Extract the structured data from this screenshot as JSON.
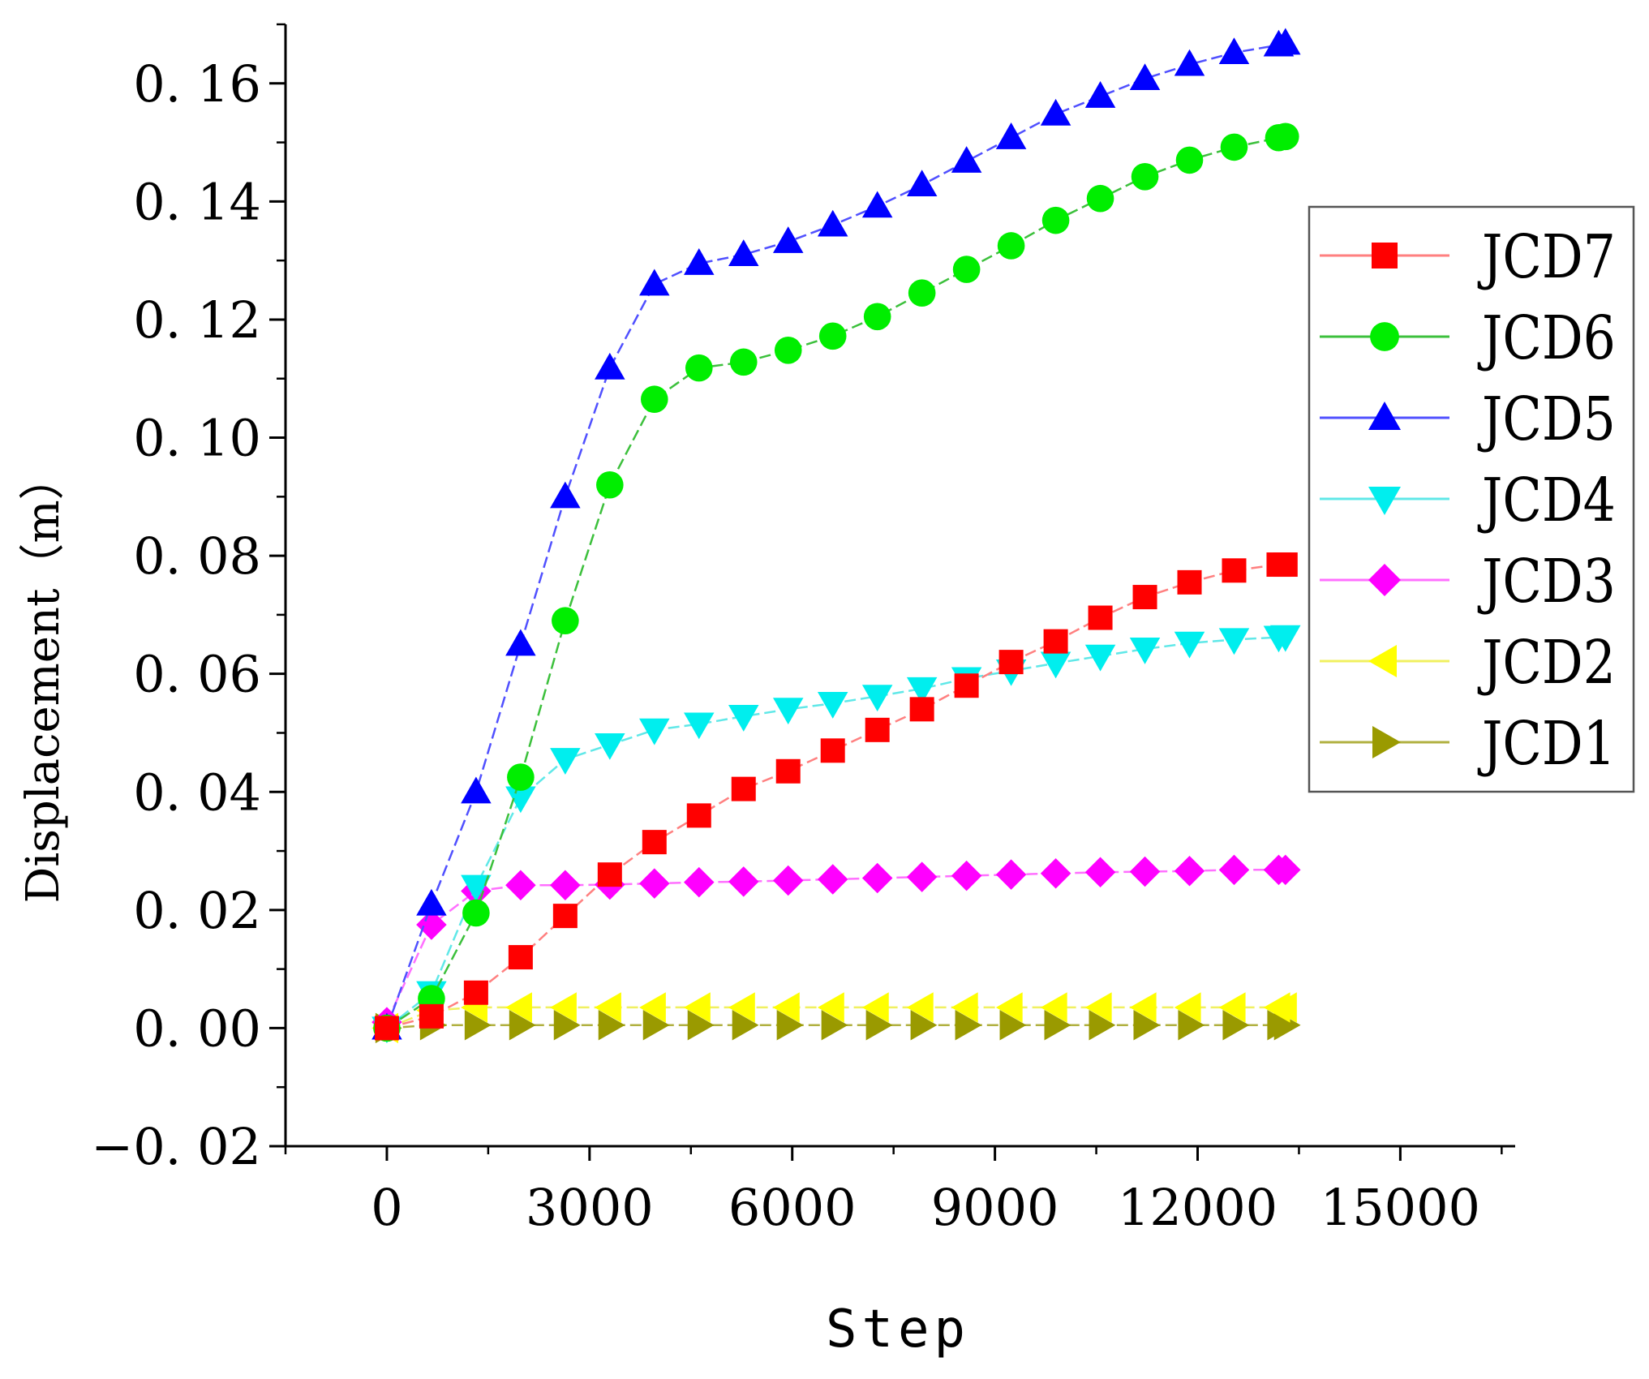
{
  "chart_data": {
    "type": "line",
    "title": "",
    "xlabel": "Step",
    "ylabel": "Displacement（m）",
    "xlim": [
      -1500,
      16700
    ],
    "ylim": [
      -0.02,
      0.17
    ],
    "xticks": [
      0,
      3000,
      6000,
      9000,
      12000,
      15000
    ],
    "xtick_labels": [
      "0",
      "3000",
      "6000",
      "9000",
      "12000",
      "15000"
    ],
    "yticks": [
      -0.02,
      0.0,
      0.02,
      0.04,
      0.06,
      0.08,
      0.1,
      0.12,
      0.14,
      0.16
    ],
    "ytick_labels": [
      "−0. 02",
      "0. 00",
      "0. 02",
      "0. 04",
      "0. 06",
      "0. 08",
      "0. 10",
      "0. 12",
      "0. 14",
      "0. 16"
    ],
    "grid": false,
    "legend_position": "right",
    "x": [
      0,
      660,
      1320,
      1980,
      2640,
      3300,
      3960,
      4620,
      5280,
      5940,
      6600,
      7260,
      7920,
      8580,
      9240,
      9900,
      10560,
      11220,
      11880,
      12540,
      13200,
      13300
    ],
    "series": [
      {
        "name": "JCD7",
        "color": "#ff0000",
        "line_color": "#ff8080",
        "marker": "square",
        "values": [
          0.0,
          0.002,
          0.006,
          0.012,
          0.019,
          0.026,
          0.0315,
          0.036,
          0.0405,
          0.0435,
          0.047,
          0.0505,
          0.054,
          0.058,
          0.062,
          0.0655,
          0.0695,
          0.073,
          0.0755,
          0.0775,
          0.0785,
          0.0785
        ]
      },
      {
        "name": "JCD6",
        "color": "#00ee00",
        "line_color": "#3cc03c",
        "marker": "circle",
        "values": [
          0.0,
          0.005,
          0.0195,
          0.0425,
          0.069,
          0.092,
          0.1065,
          0.1118,
          0.1128,
          0.1148,
          0.1172,
          0.1205,
          0.1245,
          0.1285,
          0.1325,
          0.1368,
          0.1405,
          0.1442,
          0.147,
          0.1492,
          0.1508,
          0.151
        ]
      },
      {
        "name": "JCD5",
        "color": "#0000ff",
        "line_color": "#5050ff",
        "marker": "triangle-up",
        "values": [
          0.0,
          0.021,
          0.04,
          0.065,
          0.09,
          0.1118,
          0.126,
          0.1295,
          0.131,
          0.1332,
          0.136,
          0.1392,
          0.1428,
          0.1468,
          0.1508,
          0.1548,
          0.1578,
          0.1608,
          0.1632,
          0.1652,
          0.1665,
          0.1668
        ]
      },
      {
        "name": "JCD4",
        "color": "#00eeee",
        "line_color": "#60e8e8",
        "marker": "triangle-down",
        "values": [
          0.0,
          0.006,
          0.024,
          0.039,
          0.0455,
          0.048,
          0.0505,
          0.0515,
          0.0528,
          0.054,
          0.055,
          0.0562,
          0.0575,
          0.0592,
          0.0605,
          0.0618,
          0.063,
          0.0642,
          0.0652,
          0.0658,
          0.0662,
          0.0663
        ]
      },
      {
        "name": "JCD3",
        "color": "#ff00ff",
        "line_color": "#ff70ff",
        "marker": "diamond",
        "values": [
          0.001,
          0.0175,
          0.0232,
          0.0242,
          0.0242,
          0.0243,
          0.0245,
          0.0247,
          0.0248,
          0.025,
          0.0252,
          0.0254,
          0.0256,
          0.0258,
          0.026,
          0.0262,
          0.0264,
          0.0265,
          0.0266,
          0.0268,
          0.0268,
          0.0268
        ]
      },
      {
        "name": "JCD2",
        "color": "#ffff00",
        "line_color": "#f0f060",
        "marker": "triangle-left",
        "values": [
          0.0,
          0.003,
          0.0035,
          0.0035,
          0.0035,
          0.0035,
          0.0035,
          0.0035,
          0.0035,
          0.0035,
          0.0035,
          0.0035,
          0.0035,
          0.0035,
          0.0035,
          0.0035,
          0.0035,
          0.0035,
          0.0035,
          0.0035,
          0.0035,
          0.0035
        ]
      },
      {
        "name": "JCD1",
        "color": "#9a9a00",
        "line_color": "#b0b040",
        "marker": "triangle-right",
        "values": [
          0.0,
          0.0005,
          0.0005,
          0.0005,
          0.0005,
          0.0005,
          0.0005,
          0.0005,
          0.0005,
          0.0005,
          0.0005,
          0.0005,
          0.0005,
          0.0005,
          0.0005,
          0.0005,
          0.0005,
          0.0005,
          0.0005,
          0.0005,
          0.0005,
          0.0005
        ]
      }
    ]
  }
}
